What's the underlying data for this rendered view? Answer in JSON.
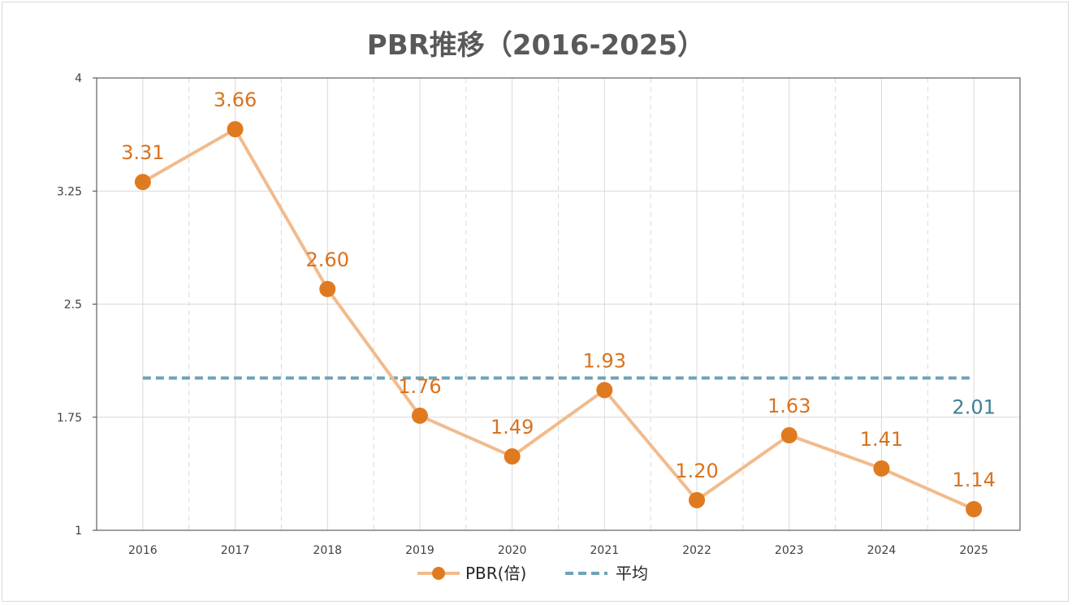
{
  "chart_data": {
    "type": "line",
    "title": "PBR推移（2016-2025）",
    "categories": [
      "2016",
      "2017",
      "2018",
      "2019",
      "2020",
      "2021",
      "2022",
      "2023",
      "2024",
      "2025"
    ],
    "series": [
      {
        "name": "PBR(倍)",
        "values": [
          3.31,
          3.66,
          2.6,
          1.76,
          1.49,
          1.93,
          1.2,
          1.63,
          1.41,
          1.14
        ],
        "labels": [
          "3.31",
          "3.66",
          "2.60",
          "1.76",
          "1.49",
          "1.93",
          "1.20",
          "1.63",
          "1.41",
          "1.14"
        ],
        "line_color": "#f2bb8c",
        "marker_color": "#e07a1f"
      },
      {
        "name": "平均",
        "value": 2.01,
        "label": "2.01",
        "style": "dashed",
        "color": "#6fa3b6"
      }
    ],
    "ylim": [
      1,
      4
    ],
    "yticks": [
      "1",
      "1.75",
      "2.5",
      "3.25",
      "4"
    ],
    "ytick_values": [
      1,
      1.75,
      2.5,
      3.25,
      4
    ],
    "grid": true,
    "legend": "bottom"
  }
}
